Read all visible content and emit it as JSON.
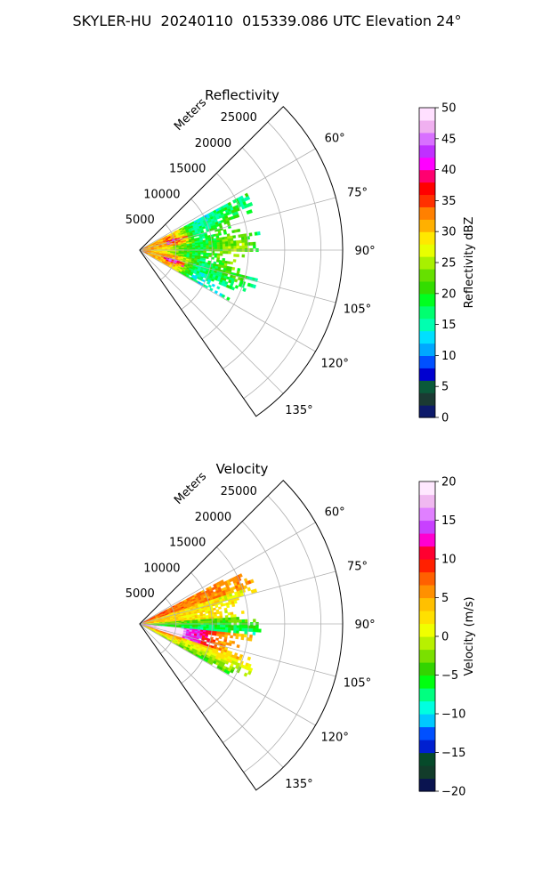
{
  "title": "SKYLER-HU  20240110  015339.086 UTC Elevation 24°",
  "chart_data": [
    {
      "type": "heatmap",
      "projection": "polar-sector",
      "title": "Reflectivity",
      "radial_axis_label": "Meters",
      "radial_ticks": [
        "5000",
        "10000",
        "15000",
        "20000",
        "25000"
      ],
      "radial_tick_values": [
        5000,
        10000,
        15000,
        20000,
        25000
      ],
      "r_max": 28000,
      "azimuth_range_deg": [
        45,
        145
      ],
      "azimuth_ticks": [
        "60°",
        "75°",
        "90°",
        "105°",
        "120°",
        "135°"
      ],
      "azimuth_tick_values": [
        60,
        75,
        90,
        105,
        120,
        135
      ],
      "grid": true,
      "colorbar": {
        "label": "Reflectivity dBZ",
        "range": [
          0,
          50
        ],
        "ticks": [
          "0",
          "5",
          "10",
          "15",
          "20",
          "25",
          "30",
          "35",
          "40",
          "45",
          "50"
        ],
        "tick_values": [
          0,
          5,
          10,
          15,
          20,
          25,
          30,
          35,
          40,
          45,
          50
        ]
      },
      "data_extent": {
        "azimuth_deg": [
          62,
          118
        ],
        "range_m": [
          0,
          16500
        ]
      }
    },
    {
      "type": "heatmap",
      "projection": "polar-sector",
      "title": "Velocity",
      "radial_axis_label": "Meters",
      "radial_ticks": [
        "5000",
        "10000",
        "15000",
        "20000",
        "25000"
      ],
      "radial_tick_values": [
        5000,
        10000,
        15000,
        20000,
        25000
      ],
      "r_max": 28000,
      "azimuth_range_deg": [
        45,
        145
      ],
      "azimuth_ticks": [
        "60°",
        "75°",
        "90°",
        "105°",
        "120°",
        "135°"
      ],
      "azimuth_tick_values": [
        60,
        75,
        90,
        105,
        120,
        135
      ],
      "grid": true,
      "colorbar": {
        "label": "Velocity (m/s)",
        "range": [
          -20,
          20
        ],
        "ticks": [
          "−20",
          "−15",
          "−10",
          "−5",
          "0",
          "5",
          "10",
          "15",
          "20"
        ],
        "tick_values": [
          -20,
          -15,
          -10,
          -5,
          0,
          5,
          10,
          15,
          20
        ]
      },
      "data_extent": {
        "azimuth_deg": [
          62,
          118
        ],
        "range_m": [
          0,
          16500
        ]
      }
    }
  ],
  "colors": {
    "reflectivity_scale": [
      "#0d1a6b",
      "#1b3a33",
      "#0a5a3a",
      "#0000d0",
      "#0050ff",
      "#00a8ff",
      "#00e0ff",
      "#00ffb0",
      "#00ff70",
      "#00ff20",
      "#33dd00",
      "#66e000",
      "#a8f000",
      "#e8ff00",
      "#ffe800",
      "#ffb000",
      "#ff8000",
      "#ff3000",
      "#ff0000",
      "#ff0070",
      "#ff00ff",
      "#c030ff",
      "#d870ff",
      "#f0b0f0",
      "#ffe0ff"
    ],
    "velocity_scale": [
      "#0a1450",
      "#123c2a",
      "#064a2a",
      "#0020d0",
      "#0050ff",
      "#00c8ff",
      "#00ffe0",
      "#00ff80",
      "#00ff10",
      "#33d400",
      "#7ae000",
      "#b8f000",
      "#f0ff00",
      "#ffe000",
      "#ffc000",
      "#ff9000",
      "#ff6000",
      "#ff2000",
      "#ff0030",
      "#ff00d0",
      "#c840ff",
      "#e080ff",
      "#f0b8f0",
      "#ffe8ff"
    ]
  }
}
